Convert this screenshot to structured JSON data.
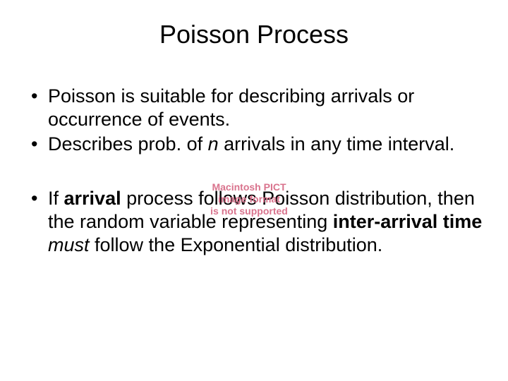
{
  "slide": {
    "title": "Poisson Process",
    "title_fontsize": 36,
    "body_fontsize": 27,
    "background_color": "#ffffff",
    "text_color": "#000000",
    "bullets": [
      {
        "prefix": "Poisson is suitable for describing arrivals or occurrence of events."
      },
      {
        "prefix": "Describes prob. of ",
        "italic1": "n",
        "suffix": " arrivals in any time interval."
      },
      {
        "prefix": "If ",
        "bold1": "arrival",
        "mid1": " process follows Poisson distribution, then the random variable representing ",
        "bold2": "inter-arrival time",
        "mid2": " ",
        "italic1": "must",
        "suffix": " follow the Exponential distribution."
      }
    ],
    "pict_error": {
      "line1": "Macintosh PICT",
      "line2": "image format",
      "line3": "is not supported",
      "color": "#d9738d",
      "fontsize": 14
    }
  }
}
